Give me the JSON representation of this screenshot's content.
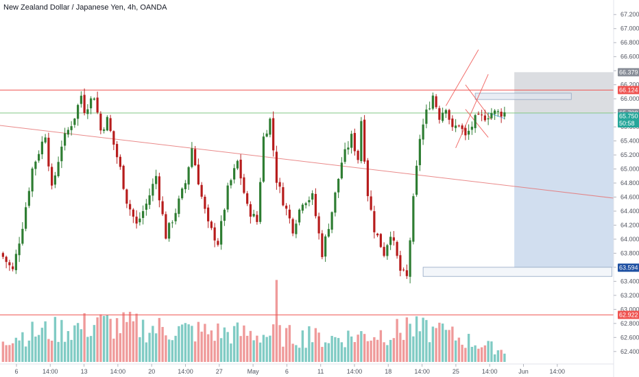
{
  "chart_data": {
    "type": "candlestick",
    "title": "New Zealand Dollar / Japanese Yen, 4h, OANDA",
    "ylim": [
      62.32,
      67.3
    ],
    "y_ticks": [
      "67.200",
      "67.000",
      "66.800",
      "66.600",
      "66.400",
      "66.200",
      "66.000",
      "65.800",
      "65.600",
      "65.400",
      "65.200",
      "65.000",
      "64.800",
      "64.600",
      "64.400",
      "64.200",
      "64.000",
      "63.800",
      "63.600",
      "63.400",
      "63.200",
      "63.000",
      "62.800",
      "62.600",
      "62.400"
    ],
    "x_ticks": [
      "6",
      "14:00",
      "13",
      "14:00",
      "20",
      "14:00",
      "27",
      "May",
      "6",
      "11",
      "14:00",
      "18",
      "14:00",
      "25",
      "14:00",
      "Jun",
      "14:00"
    ],
    "n_bars": 155,
    "close_anchors": [
      [
        0,
        63.75
      ],
      [
        3,
        63.55
      ],
      [
        6,
        64.2
      ],
      [
        9,
        65.0
      ],
      [
        13,
        65.5
      ],
      [
        15,
        64.7
      ],
      [
        18,
        65.35
      ],
      [
        22,
        65.75
      ],
      [
        24,
        66.05
      ],
      [
        25,
        65.85
      ],
      [
        28,
        66.05
      ],
      [
        30,
        65.55
      ],
      [
        32,
        65.7
      ],
      [
        36,
        65.0
      ],
      [
        38,
        64.55
      ],
      [
        41,
        64.2
      ],
      [
        44,
        64.5
      ],
      [
        47,
        64.9
      ],
      [
        50,
        64.05
      ],
      [
        53,
        64.4
      ],
      [
        56,
        64.8
      ],
      [
        58,
        65.3
      ],
      [
        61,
        64.6
      ],
      [
        63,
        64.2
      ],
      [
        66,
        63.95
      ],
      [
        69,
        64.7
      ],
      [
        72,
        65.1
      ],
      [
        75,
        64.45
      ],
      [
        78,
        64.25
      ],
      [
        80,
        65.45
      ],
      [
        82,
        65.7
      ],
      [
        84,
        64.85
      ],
      [
        86,
        64.55
      ],
      [
        89,
        64.15
      ],
      [
        92,
        64.55
      ],
      [
        95,
        64.6
      ],
      [
        98,
        63.8
      ],
      [
        101,
        64.4
      ],
      [
        104,
        65.1
      ],
      [
        107,
        65.45
      ],
      [
        109,
        65.15
      ],
      [
        110,
        65.7
      ],
      [
        112,
        64.65
      ],
      [
        114,
        64.15
      ],
      [
        117,
        63.8
      ],
      [
        119,
        64.1
      ],
      [
        122,
        63.55
      ],
      [
        124,
        63.45
      ],
      [
        126,
        64.55
      ],
      [
        128,
        65.45
      ],
      [
        130,
        65.8
      ],
      [
        132,
        66.05
      ],
      [
        134,
        65.75
      ],
      [
        136,
        65.9
      ],
      [
        138,
        65.55
      ],
      [
        140,
        65.65
      ],
      [
        142,
        65.45
      ],
      [
        145,
        65.7
      ],
      [
        148,
        65.75
      ],
      [
        150,
        65.8
      ],
      [
        154,
        65.8
      ]
    ],
    "volume_anchors": [
      [
        0,
        0.28
      ],
      [
        30,
        0.42
      ],
      [
        60,
        0.34
      ],
      [
        84,
        0.3
      ],
      [
        100,
        0.26
      ],
      [
        126,
        0.36
      ],
      [
        135,
        0.32
      ],
      [
        154,
        0.12
      ]
    ],
    "volume_spikes": [
      [
        84,
        0.92
      ],
      [
        124,
        0.5
      ],
      [
        134,
        0.44
      ],
      [
        29,
        0.5
      ],
      [
        94,
        0.4
      ]
    ],
    "horizontal_levels": [
      {
        "value": 66.124,
        "color": "#ef5350"
      },
      {
        "value": 65.798,
        "color": "#81c784"
      },
      {
        "value": 62.922,
        "color": "#ef5350"
      }
    ],
    "trendlines": [
      {
        "x1": 0,
        "y1": 65.62,
        "x2": 154.0,
        "y2": 64.77,
        "extend": true,
        "color": "#e57373"
      },
      {
        "x1": 136,
        "y1": 65.9,
        "x2": 146,
        "y2": 66.7,
        "color": "#ef5350"
      },
      {
        "x1": 139,
        "y1": 65.3,
        "x2": 149,
        "y2": 66.35,
        "color": "#ef5350"
      },
      {
        "x1": 142,
        "y1": 66.2,
        "x2": 150,
        "y2": 65.7,
        "color": "#ef5350"
      },
      {
        "x1": 142,
        "y1": 65.85,
        "x2": 149,
        "y2": 65.45,
        "color": "#ef5350"
      },
      {
        "x1": 149,
        "y1": 65.8,
        "x2": 154,
        "y2": 65.72,
        "color": "#42a5f5"
      }
    ],
    "zones": [
      {
        "x1": 145,
        "x2": 174.5,
        "y1": 66.08,
        "y2": 65.99,
        "fill": "#dfe6f0",
        "stroke": "#90a4c0"
      },
      {
        "x1": 129,
        "x2": 187,
        "y1": 63.6,
        "y2": 63.47,
        "fill": "#eef2f8",
        "stroke": "#90a4c0"
      }
    ],
    "position": {
      "x1": 157,
      "entry": 65.798,
      "target": 66.379,
      "stop": 63.594,
      "profit_fill": "#d5d7dc",
      "loss_fill": "#cfdcee"
    },
    "price_tags": [
      {
        "label": "66.379",
        "value": 66.379,
        "bg": "#888d97"
      },
      {
        "label": "66.124",
        "value": 66.124,
        "bg": "#ef5350"
      },
      {
        "label": "65.798",
        "value": 65.798,
        "bg": "#8a8f99"
      },
      {
        "label": "65.750",
        "value": 65.75,
        "bg": "#26a69a"
      },
      {
        "label": "50:58",
        "value": 65.65,
        "bg": "#26a69a"
      },
      {
        "label": "63.594",
        "value": 63.594,
        "bg": "#1e50a2"
      },
      {
        "label": "62.922",
        "value": 62.922,
        "bg": "#ef5350"
      }
    ],
    "colors": {
      "up": "#26a69a",
      "up_body": "#2e7d32",
      "down": "#b71c1c",
      "vol_up": "#80cbc4",
      "vol_down": "#ef9a9a"
    }
  }
}
